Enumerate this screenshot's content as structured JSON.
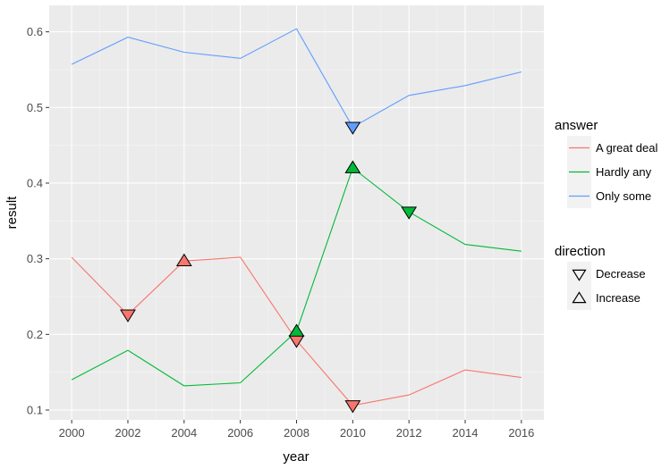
{
  "chart_data": {
    "type": "line",
    "x": [
      2000,
      2002,
      2004,
      2006,
      2008,
      2010,
      2012,
      2014,
      2016
    ],
    "xlabel": "year",
    "ylabel": "result",
    "xlim": [
      1999.2,
      2016.8
    ],
    "ylim": [
      0.087,
      0.635
    ],
    "x_ticks": [
      "2000",
      "2002",
      "2004",
      "2006",
      "2008",
      "2010",
      "2012",
      "2014",
      "2016"
    ],
    "y_ticks": [
      "0.1",
      "0.2",
      "0.3",
      "0.4",
      "0.5",
      "0.6"
    ],
    "y_tick_values": [
      0.1,
      0.2,
      0.3,
      0.4,
      0.5,
      0.6
    ],
    "grid": true,
    "legend_position": "right",
    "series": [
      {
        "name": "A great deal",
        "color": "#F8766D",
        "values": [
          0.302,
          0.226,
          0.297,
          0.302,
          0.192,
          0.106,
          0.12,
          0.153,
          0.143
        ]
      },
      {
        "name": "Hardly any",
        "color": "#00BA38",
        "values": [
          0.14,
          0.179,
          0.132,
          0.136,
          0.204,
          0.42,
          0.362,
          0.319,
          0.31
        ]
      },
      {
        "name": "Only some",
        "color": "#619CFF",
        "values": [
          0.557,
          0.593,
          0.573,
          0.565,
          0.604,
          0.474,
          0.516,
          0.529,
          0.547
        ]
      }
    ],
    "markers": [
      {
        "series": "A great deal",
        "x": 2002,
        "y": 0.226,
        "direction": "Decrease"
      },
      {
        "series": "A great deal",
        "x": 2004,
        "y": 0.297,
        "direction": "Increase"
      },
      {
        "series": "A great deal",
        "x": 2008,
        "y": 0.192,
        "direction": "Decrease"
      },
      {
        "series": "A great deal",
        "x": 2010,
        "y": 0.106,
        "direction": "Decrease"
      },
      {
        "series": "Hardly any",
        "x": 2008,
        "y": 0.204,
        "direction": "Increase"
      },
      {
        "series": "Hardly any",
        "x": 2010,
        "y": 0.42,
        "direction": "Increase"
      },
      {
        "series": "Hardly any",
        "x": 2012,
        "y": 0.362,
        "direction": "Decrease"
      },
      {
        "series": "Only some",
        "x": 2010,
        "y": 0.474,
        "direction": "Decrease"
      }
    ],
    "legend_color": {
      "title": "answer",
      "items": [
        "A great deal",
        "Hardly any",
        "Only some"
      ]
    },
    "legend_shape": {
      "title": "direction",
      "items": [
        "Decrease",
        "Increase"
      ]
    }
  }
}
